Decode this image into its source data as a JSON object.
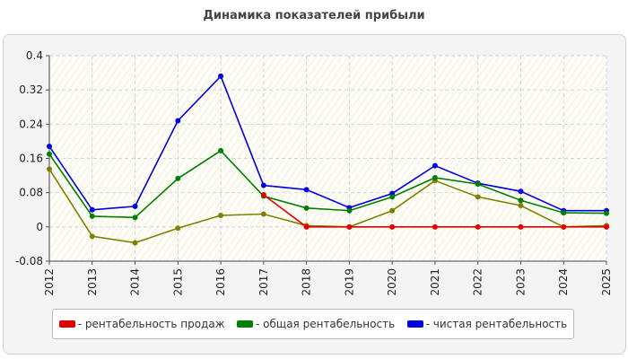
{
  "chart_data": {
    "type": "line",
    "title": "Динамика показателей прибыли",
    "x": [
      "2012",
      "2013",
      "2014",
      "2015",
      "2016",
      "2017",
      "2018",
      "2019",
      "2020",
      "2021",
      "2022",
      "2023",
      "2024",
      "2025"
    ],
    "y_ticks": [
      "-0.08",
      "0",
      "0.08",
      "0.16",
      "0.24",
      "0.32",
      "0.4"
    ],
    "ylim": [
      -0.08,
      0.4
    ],
    "grid": true,
    "legend_position": "bottom",
    "series": [
      {
        "name": "- рентабельность продаж",
        "color": "#e00000",
        "values": [
          null,
          null,
          null,
          null,
          null,
          0.075,
          0.0,
          0.0,
          0.0,
          0.0,
          0.0,
          0.0,
          0.0,
          0.0
        ]
      },
      {
        "name": "- общая рентабельность",
        "color": "#007f00",
        "values": [
          0.17,
          0.025,
          0.022,
          0.113,
          0.178,
          0.072,
          0.044,
          0.038,
          0.07,
          0.115,
          0.1,
          0.062,
          0.033,
          0.032
        ]
      },
      {
        "name": "- чистая рентабельность",
        "color": "#0000e0",
        "values": [
          0.188,
          0.04,
          0.048,
          0.248,
          0.352,
          0.097,
          0.087,
          0.045,
          0.078,
          0.143,
          0.102,
          0.083,
          0.038,
          0.038
        ]
      },
      {
        "name": "",
        "color": "#808000",
        "values": [
          0.135,
          -0.022,
          -0.037,
          -0.003,
          0.027,
          0.03,
          0.003,
          0.0,
          0.038,
          0.108,
          0.07,
          0.05,
          0.0,
          0.003
        ]
      }
    ]
  }
}
